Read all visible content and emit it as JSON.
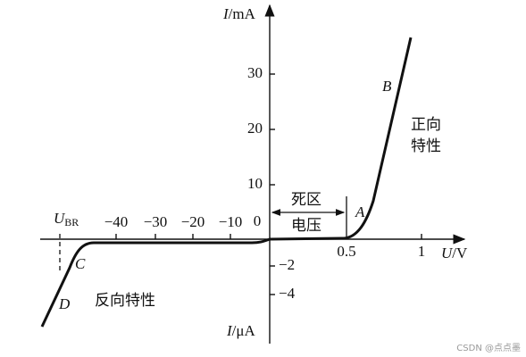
{
  "y_axis": {
    "top_label": {
      "symbol": "I",
      "unit": "/mA"
    },
    "bottom_label": {
      "symbol": "I",
      "unit": "/μA"
    },
    "positive_ticks": [
      "10",
      "20",
      "30"
    ],
    "negative_ticks": [
      "−2",
      "−4"
    ]
  },
  "x_axis": {
    "label": {
      "symbol": "U",
      "unit": "/V"
    },
    "origin": "0",
    "positive_ticks": [
      "0.5",
      "1"
    ],
    "negative_ticks": [
      "−10",
      "−20",
      "−30",
      "−40"
    ],
    "breakdown": {
      "symbol": "U",
      "subscript": "BR"
    }
  },
  "points": [
    "A",
    "B",
    "C",
    "D"
  ],
  "annotations": {
    "dead_zone": [
      "死区",
      "电压"
    ],
    "forward": [
      "正向",
      "特性"
    ],
    "reverse": "反向特性"
  },
  "watermark": "CSDN @点点墨"
}
